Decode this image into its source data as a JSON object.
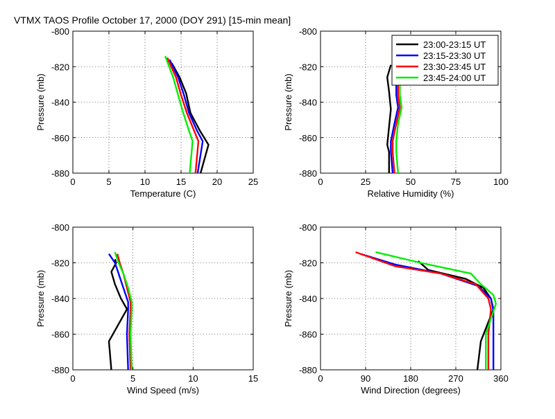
{
  "figure": {
    "title": "VTMX TAOS Profile   October 17, 2000 (DOY 291) [15-min mean]"
  },
  "legend": {
    "entries": [
      {
        "label": "23:00-23:15 UT",
        "color": "#000000"
      },
      {
        "label": "23:15-23:30 UT",
        "color": "#0000ff"
      },
      {
        "label": "23:30-23:45 UT",
        "color": "#ff0000"
      },
      {
        "label": "23:45-24:00 UT",
        "color": "#00ee00"
      }
    ]
  },
  "chart_data": [
    {
      "type": "line",
      "id": "temperature",
      "xlabel": "Temperature (C)",
      "ylabel": "Pressure (mb)",
      "xlim": [
        0,
        25
      ],
      "ylim": [
        -880,
        -800
      ],
      "xticks": [
        0,
        5,
        10,
        15,
        20,
        25
      ],
      "yticks": [
        -800,
        -820,
        -840,
        -860,
        -880
      ],
      "grid": true,
      "series": [
        {
          "name": "23:00-23:15 UT",
          "color": "#000000",
          "x": [
            13.7,
            14.8,
            15.7,
            16.3,
            17.6,
            18.8,
            17.7
          ],
          "y": [
            -818,
            -826,
            -835,
            -846,
            -856,
            -864,
            -880
          ]
        },
        {
          "name": "23:15-23:30 UT",
          "color": "#0000ff",
          "x": [
            13.4,
            14.6,
            15.4,
            16.1,
            17.2,
            18.0,
            17.3
          ],
          "y": [
            -816,
            -826,
            -836,
            -846,
            -856,
            -862,
            -880
          ]
        },
        {
          "name": "23:30-23:45 UT",
          "color": "#ff0000",
          "x": [
            13.1,
            14.3,
            15.0,
            15.8,
            16.8,
            17.4,
            17.0
          ],
          "y": [
            -815,
            -826,
            -836,
            -846,
            -856,
            -862,
            -880
          ]
        },
        {
          "name": "23:45-24:00 UT",
          "color": "#00ee00",
          "x": [
            12.8,
            13.9,
            14.6,
            15.3,
            16.1,
            16.6,
            16.2
          ],
          "y": [
            -814,
            -826,
            -836,
            -846,
            -856,
            -862,
            -880
          ]
        }
      ]
    },
    {
      "type": "line",
      "id": "humidity",
      "xlabel": "Relative Humidity (%)",
      "ylabel": "Pressure (mb)",
      "xlim": [
        0,
        100
      ],
      "ylim": [
        -880,
        -800
      ],
      "xticks": [
        0,
        25,
        50,
        75,
        100
      ],
      "yticks": [
        -800,
        -820,
        -840,
        -860,
        -880
      ],
      "grid": true,
      "series": [
        {
          "name": "23:00-23:15 UT",
          "color": "#000000",
          "x": [
            39,
            37,
            38,
            39,
            38,
            37,
            38,
            38
          ],
          "y": [
            -819,
            -826,
            -834,
            -844,
            -854,
            -864,
            -868,
            -880
          ]
        },
        {
          "name": "23:15-23:30 UT",
          "color": "#0000ff",
          "x": [
            41,
            42,
            42,
            43,
            41,
            39,
            39,
            40
          ],
          "y": [
            -824,
            -830,
            -836,
            -843,
            -852,
            -862,
            -868,
            -880
          ]
        },
        {
          "name": "23:30-23:45 UT",
          "color": "#ff0000",
          "x": [
            41,
            43,
            43,
            44,
            42,
            40,
            40,
            41
          ],
          "y": [
            -824,
            -830,
            -836,
            -843,
            -852,
            -862,
            -868,
            -880
          ]
        },
        {
          "name": "23:45-24:00 UT",
          "color": "#00ee00",
          "x": [
            42,
            44,
            44,
            45,
            43,
            42,
            42,
            43
          ],
          "y": [
            -824,
            -830,
            -836,
            -843,
            -852,
            -862,
            -868,
            -880
          ]
        }
      ]
    },
    {
      "type": "line",
      "id": "wind-speed",
      "xlabel": "Wind Speed (m/s)",
      "ylabel": "Pressure (mb)",
      "xlim": [
        0,
        15
      ],
      "ylim": [
        -880,
        -800
      ],
      "xticks": [
        0,
        5,
        10,
        15
      ],
      "yticks": [
        -800,
        -820,
        -840,
        -860,
        -880
      ],
      "grid": true,
      "series": [
        {
          "name": "23:00-23:15 UT",
          "color": "#000000",
          "x": [
            3.5,
            3.6,
            3.2,
            3.5,
            4.0,
            4.5,
            3.0,
            3.2
          ],
          "y": [
            -818,
            -820,
            -825,
            -832,
            -840,
            -846,
            -864,
            -880
          ]
        },
        {
          "name": "23:15-23:30 UT",
          "color": "#0000ff",
          "x": [
            3.0,
            3.5,
            3.8,
            4.2,
            4.6,
            4.6,
            4.5,
            4.6
          ],
          "y": [
            -815,
            -820,
            -826,
            -834,
            -842,
            -846,
            -860,
            -880
          ]
        },
        {
          "name": "23:30-23:45 UT",
          "color": "#ff0000",
          "x": [
            3.7,
            3.9,
            4.2,
            4.5,
            4.8,
            4.8,
            4.7,
            4.8
          ],
          "y": [
            -815,
            -820,
            -826,
            -834,
            -842,
            -846,
            -860,
            -880
          ]
        },
        {
          "name": "23:45-24:00 UT",
          "color": "#00ee00",
          "x": [
            3.5,
            3.8,
            4.2,
            4.6,
            4.9,
            4.9,
            4.8,
            4.9
          ],
          "y": [
            -814,
            -820,
            -826,
            -834,
            -842,
            -846,
            -860,
            -880
          ]
        }
      ]
    },
    {
      "type": "line",
      "id": "wind-direction",
      "xlabel": "Wind Direction (degrees)",
      "ylabel": "Pressure (mb)",
      "xlim": [
        0,
        360
      ],
      "ylim": [
        -880,
        -800
      ],
      "xticks": [
        0,
        90,
        180,
        270,
        360
      ],
      "yticks": [
        -800,
        -820,
        -840,
        -860,
        -880
      ],
      "grid": true,
      "series": [
        {
          "name": "23:00-23:15 UT",
          "color": "#000000",
          "x": [
            195,
            215,
            290,
            325,
            340,
            345,
            320,
            313
          ],
          "y": [
            -819,
            -824,
            -829,
            -834,
            -840,
            -846,
            -864,
            -880
          ]
        },
        {
          "name": "23:15-23:30 UT",
          "color": "#0000ff",
          "x": [
            80,
            150,
            240,
            315,
            340,
            345,
            345,
            345
          ],
          "y": [
            -815,
            -821,
            -826,
            -833,
            -840,
            -847,
            -860,
            -880
          ]
        },
        {
          "name": "23:30-23:45 UT",
          "color": "#ff0000",
          "x": [
            70,
            150,
            240,
            310,
            335,
            340,
            335,
            335
          ],
          "y": [
            -814,
            -822,
            -826,
            -832,
            -840,
            -846,
            -860,
            -880
          ]
        },
        {
          "name": "23:45-24:00 UT",
          "color": "#00ee00",
          "x": [
            110,
            200,
            300,
            320,
            345,
            350,
            330,
            330
          ],
          "y": [
            -814,
            -820,
            -826,
            -832,
            -838,
            -843,
            -860,
            -880
          ]
        }
      ]
    }
  ]
}
